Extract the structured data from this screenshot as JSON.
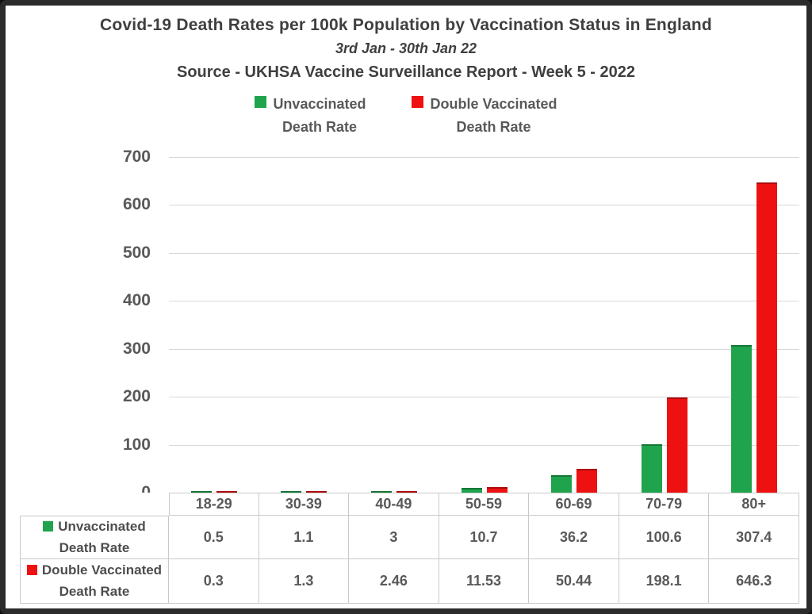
{
  "title": {
    "line1": "Covid-19 Death Rates per 100k Population by Vaccination Status in England",
    "line2": "3rd Jan - 30th Jan 22",
    "line3": "Source - UKHSA Vaccine Surveillance Report - Week 5 - 2022"
  },
  "chart_data": {
    "type": "bar",
    "title": "Covid-19 Death Rates per 100k Population by Vaccination Status in England",
    "subtitle": "3rd Jan - 30th Jan 22",
    "source": "Source - UKHSA Vaccine Surveillance Report - Week 5 - 2022",
    "categories": [
      "18-29",
      "30-39",
      "40-49",
      "50-59",
      "60-69",
      "70-79",
      "80+"
    ],
    "series": [
      {
        "name": "Unvaccinated Death Rate",
        "legend_lines": [
          "Unvaccinated",
          "Death Rate"
        ],
        "color": "#1fa44d",
        "values": [
          0.5,
          1.1,
          3,
          10.7,
          36.2,
          100.6,
          307.4
        ],
        "value_labels": [
          "0.5",
          "1.1",
          "3",
          "10.7",
          "36.2",
          "100.6",
          "307.4"
        ]
      },
      {
        "name": "Double Vaccinated Death Rate",
        "legend_lines": [
          "Double Vaccinated",
          "Death Rate"
        ],
        "color": "#ee1111",
        "values": [
          0.3,
          1.3,
          2.46,
          11.53,
          50.44,
          198.1,
          646.3
        ],
        "value_labels": [
          "0.3",
          "1.3",
          "2.46",
          "11.53",
          "50.44",
          "198.1",
          "646.3"
        ]
      }
    ],
    "xlabel": "",
    "ylabel": "",
    "ylim": [
      0,
      700
    ],
    "yticks": [
      0,
      100,
      200,
      300,
      400,
      500,
      600,
      700
    ],
    "grid": true,
    "legend_position": "top",
    "data_table_shown": true
  },
  "colors": {
    "green": "#1fa44d",
    "red": "#ee1111",
    "title_text": "#3f3f3f",
    "axis_text": "#595959",
    "gridline": "#d9d9d9",
    "table_border": "#c9c9c9",
    "frame_border": "#2b2b2b",
    "background": "#ffffff"
  }
}
